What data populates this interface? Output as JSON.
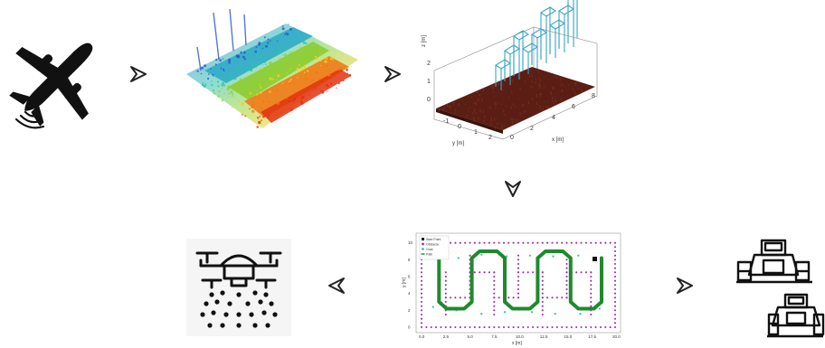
{
  "pipeline": {
    "arrow_glyph": "▷",
    "stages": [
      {
        "id": "aircraft",
        "icon": "airplane-icon"
      },
      {
        "id": "point-cloud",
        "icon": "lidar-point-cloud"
      },
      {
        "id": "terrain-3d",
        "icon": "terrain-surface-plot"
      },
      {
        "id": "path-plan",
        "icon": "coverage-path-plot"
      },
      {
        "id": "drone",
        "icon": "spraying-drone-icon"
      },
      {
        "id": "tractors",
        "icon": "tractor-icon"
      }
    ]
  },
  "terrain_plot": {
    "xlabel": "x [m]",
    "ylabel": "y [m]",
    "zlabel": "z [m]",
    "x_ticks": [
      "0",
      "2",
      "4",
      "6",
      "8"
    ],
    "y_ticks": [
      "-1",
      "0",
      "1",
      "2"
    ],
    "z_ticks": [
      "2",
      "1",
      "0"
    ],
    "surface_color": "#5a1e14",
    "box_color": "#3aa6c4"
  },
  "path_plot": {
    "ylabel": "y [m]",
    "xlabel": "x [m]",
    "legend": [
      "Start Point",
      "Obstacle",
      "Goal",
      "Path"
    ],
    "x_ticks": [
      "0.0",
      "2.5",
      "5.0",
      "7.5",
      "10.0",
      "12.5",
      "15.0",
      "17.5",
      "20.0"
    ],
    "y_ticks": [
      "10",
      "8",
      "6",
      "4",
      "2",
      "0"
    ],
    "colors": {
      "obstacle": "#9a2fa8",
      "path": "#1f8a2c",
      "goal": "#39c0a0",
      "start": "#111111"
    }
  }
}
